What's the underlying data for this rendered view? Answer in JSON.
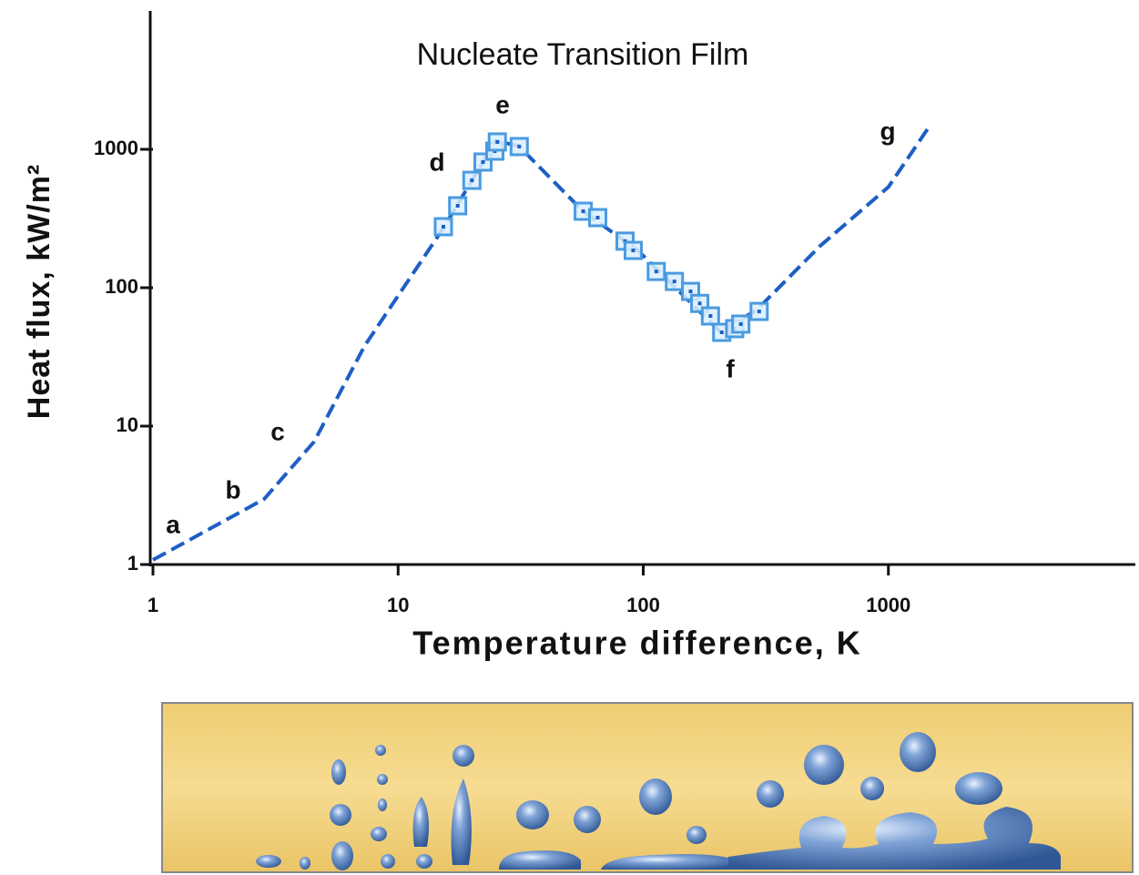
{
  "chart_data": {
    "type": "line",
    "title": "Nucleate  Transition Film",
    "x_label": "Temperature  difference, K",
    "y_label": "Heat  flux, kW/m²",
    "log_x": true,
    "log_y": true,
    "xlim": [
      1,
      10000
    ],
    "ylim": [
      1,
      10000
    ],
    "xticks": [
      1,
      10,
      100,
      1000
    ],
    "yticks": [
      1,
      10,
      100,
      1000
    ],
    "annotations": [
      "a",
      "b",
      "c",
      "d",
      "e",
      "f",
      "g"
    ],
    "series": [
      {
        "color": "#1d5fc4",
        "x": [
          1,
          2.84,
          4.54,
          7.3,
          15.3,
          25,
          31,
          57,
          95,
          206,
          290,
          526,
          1000,
          1460
        ],
        "values": [
          1.08,
          2.97,
          7.7,
          38,
          270,
          1150,
          1060,
          355,
          186,
          48,
          69,
          200,
          534,
          1440
        ]
      },
      {
        "color": "#4a9be0",
        "x": [
          15.3,
          17.5,
          20.0,
          22.2,
          24.8,
          25.4,
          31.2,
          56.9,
          65.2,
          84.3,
          91.0,
          113,
          134,
          156,
          170,
          188,
          209,
          236,
          250,
          297
        ],
        "values": [
          276,
          391,
          597,
          809,
          970,
          1130,
          1047,
          357,
          321,
          217,
          186,
          131,
          111,
          94,
          77,
          62.5,
          47.6,
          50.6,
          54.6,
          67.4
        ]
      }
    ]
  }
}
